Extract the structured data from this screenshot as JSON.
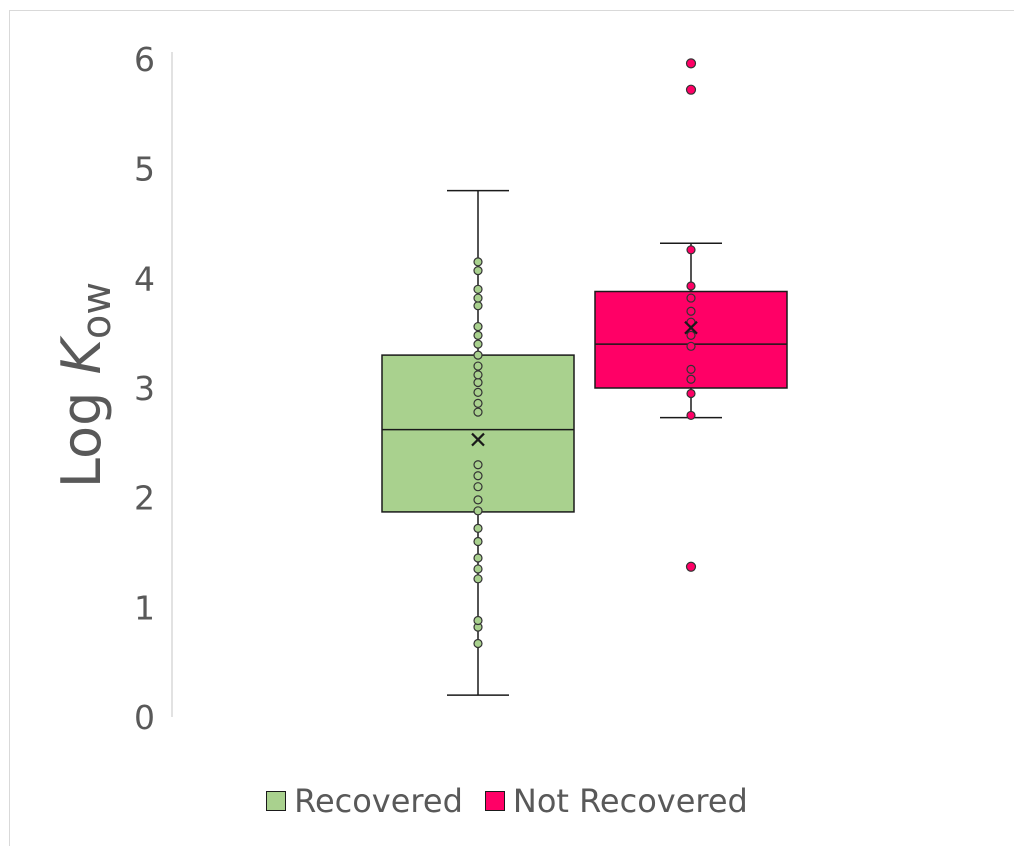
{
  "chart_data": {
    "type": "box",
    "ylabel_main": "Log ",
    "ylabel_italic": "K",
    "ylabel_sub": "ow",
    "ylim": [
      0,
      6
    ],
    "yticks": [
      "0",
      "1",
      "2",
      "3",
      "4",
      "5",
      "6"
    ],
    "grid": false,
    "legend_position": "bottom",
    "series": [
      {
        "name": "Recovered",
        "color": "#a9d18e",
        "min": 0.2,
        "q1": 1.87,
        "median": 2.62,
        "q3": 3.3,
        "max": 4.8,
        "mean": 2.53,
        "points": [
          0.67,
          0.82,
          0.88,
          1.26,
          1.35,
          1.45,
          1.6,
          1.72,
          1.88,
          1.98,
          2.1,
          2.2,
          2.3,
          2.78,
          2.86,
          2.96,
          3.05,
          3.12,
          3.2,
          3.3,
          3.4,
          3.48,
          3.56,
          3.75,
          3.82,
          3.9,
          4.07,
          4.15
        ],
        "outliers": []
      },
      {
        "name": "Not Recovered",
        "color": "#ff0066",
        "min": 2.73,
        "q1": 3.0,
        "median": 3.4,
        "q3": 3.88,
        "max": 4.32,
        "mean": 3.55,
        "points": [
          2.75,
          2.95,
          3.08,
          3.17,
          3.38,
          3.48,
          3.6,
          3.7,
          3.82,
          3.93,
          4.26
        ],
        "outliers": [
          5.96,
          5.72,
          1.37
        ]
      }
    ]
  }
}
